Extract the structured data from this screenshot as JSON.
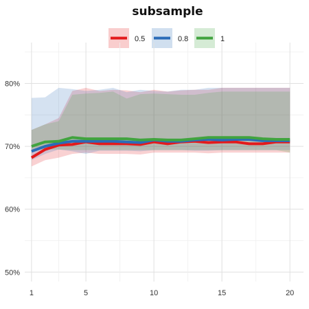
{
  "chart_data": {
    "type": "line",
    "title": "subsample",
    "xlabel": "",
    "ylabel": "",
    "x": [
      1,
      2,
      3,
      4,
      5,
      6,
      7,
      8,
      9,
      10,
      11,
      12,
      13,
      14,
      15,
      16,
      17,
      18,
      19,
      20
    ],
    "xticks": [
      1,
      5,
      10,
      15,
      20
    ],
    "xlim": [
      0.5,
      21
    ],
    "ylim": [
      0.485,
      0.865
    ],
    "yticks": [
      {
        "value": 0.5,
        "label": "50%"
      },
      {
        "value": 0.6,
        "label": "60%"
      },
      {
        "value": 0.7,
        "label": "70%"
      },
      {
        "value": 0.8,
        "label": "80%"
      }
    ],
    "legend_position": "top",
    "grid": true,
    "series": [
      {
        "name": "0.5",
        "color": "#e31a1c",
        "values": [
          0.682,
          0.695,
          0.702,
          0.703,
          0.707,
          0.704,
          0.704,
          0.704,
          0.703,
          0.707,
          0.704,
          0.707,
          0.708,
          0.706,
          0.707,
          0.707,
          0.704,
          0.704,
          0.707,
          0.707
        ],
        "lower": [
          0.668,
          0.678,
          0.682,
          0.688,
          0.69,
          0.688,
          0.688,
          0.688,
          0.687,
          0.69,
          0.69,
          0.69,
          0.69,
          0.689,
          0.69,
          0.69,
          0.69,
          0.69,
          0.69,
          0.69
        ],
        "upper": [
          0.726,
          0.735,
          0.745,
          0.788,
          0.793,
          0.788,
          0.79,
          0.789,
          0.786,
          0.79,
          0.787,
          0.789,
          0.79,
          0.79,
          0.793,
          0.793,
          0.793,
          0.793,
          0.793,
          0.793
        ]
      },
      {
        "name": "0.8",
        "color": "#2b6cb8",
        "values": [
          0.692,
          0.7,
          0.705,
          0.708,
          0.708,
          0.708,
          0.708,
          0.707,
          0.706,
          0.71,
          0.708,
          0.708,
          0.71,
          0.711,
          0.71,
          0.711,
          0.711,
          0.709,
          0.709,
          0.709
        ],
        "lower": [
          0.678,
          0.688,
          0.695,
          0.692,
          0.688,
          0.693,
          0.693,
          0.693,
          0.692,
          0.694,
          0.694,
          0.694,
          0.693,
          0.693,
          0.694,
          0.694,
          0.694,
          0.694,
          0.694,
          0.694
        ],
        "upper": [
          0.777,
          0.778,
          0.793,
          0.791,
          0.788,
          0.79,
          0.793,
          0.786,
          0.79,
          0.788,
          0.787,
          0.79,
          0.79,
          0.793,
          0.793,
          0.793,
          0.793,
          0.793,
          0.793,
          0.793
        ]
      },
      {
        "name": "1",
        "color": "#41a33f",
        "values": [
          0.7,
          0.707,
          0.708,
          0.714,
          0.712,
          0.712,
          0.712,
          0.712,
          0.71,
          0.711,
          0.71,
          0.71,
          0.712,
          0.714,
          0.714,
          0.714,
          0.714,
          0.712,
          0.711,
          0.711
        ],
        "lower": [
          0.695,
          0.695,
          0.695,
          0.694,
          0.694,
          0.694,
          0.694,
          0.694,
          0.694,
          0.694,
          0.694,
          0.694,
          0.694,
          0.694,
          0.694,
          0.694,
          0.694,
          0.694,
          0.694,
          0.69
        ],
        "upper": [
          0.726,
          0.735,
          0.74,
          0.782,
          0.784,
          0.785,
          0.787,
          0.776,
          0.783,
          0.784,
          0.783,
          0.782,
          0.782,
          0.785,
          0.787,
          0.787,
          0.787,
          0.787,
          0.787,
          0.787
        ]
      }
    ]
  }
}
